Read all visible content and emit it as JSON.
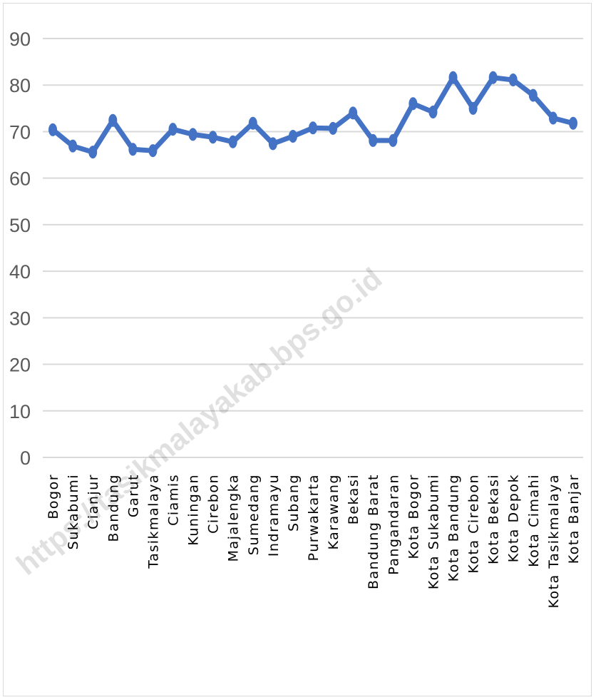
{
  "watermark": "https://tasikmalayakab.bps.go.id",
  "chart_data": {
    "type": "line",
    "title": "",
    "xlabel": "",
    "ylabel": "",
    "ylim": [
      0,
      90
    ],
    "yticks": [
      0,
      10,
      20,
      30,
      40,
      50,
      60,
      70,
      80,
      90
    ],
    "grid": true,
    "legend": "none",
    "line_color": "#4472c4",
    "categories": [
      "Bogor",
      "Sukabumi",
      "Cianjur",
      "Bandung",
      "Garut",
      "Tasikmalaya",
      "Ciamis",
      "Kuningan",
      "Cirebon",
      "Majalengka",
      "Sumedang",
      "Indramayu",
      "Subang",
      "Purwakarta",
      "Karawang",
      "Bekasi",
      "Bandung Barat",
      "Pangandaran",
      "Kota Bogor",
      "Kota Sukabumi",
      "Kota Bandung",
      "Kota Cirebon",
      "Kota Bekasi",
      "Kota Depok",
      "Kota Cimahi",
      "Kota Tasikmalaya",
      "Kota Banjar"
    ],
    "values": [
      70.4,
      66.9,
      65.6,
      72.4,
      66.2,
      65.9,
      70.5,
      69.4,
      68.8,
      67.8,
      71.8,
      67.4,
      69.0,
      70.8,
      70.7,
      74.0,
      68.1,
      68.1,
      76.0,
      74.2,
      81.6,
      75.0,
      81.6,
      81.1,
      77.8,
      72.9,
      71.8
    ]
  }
}
